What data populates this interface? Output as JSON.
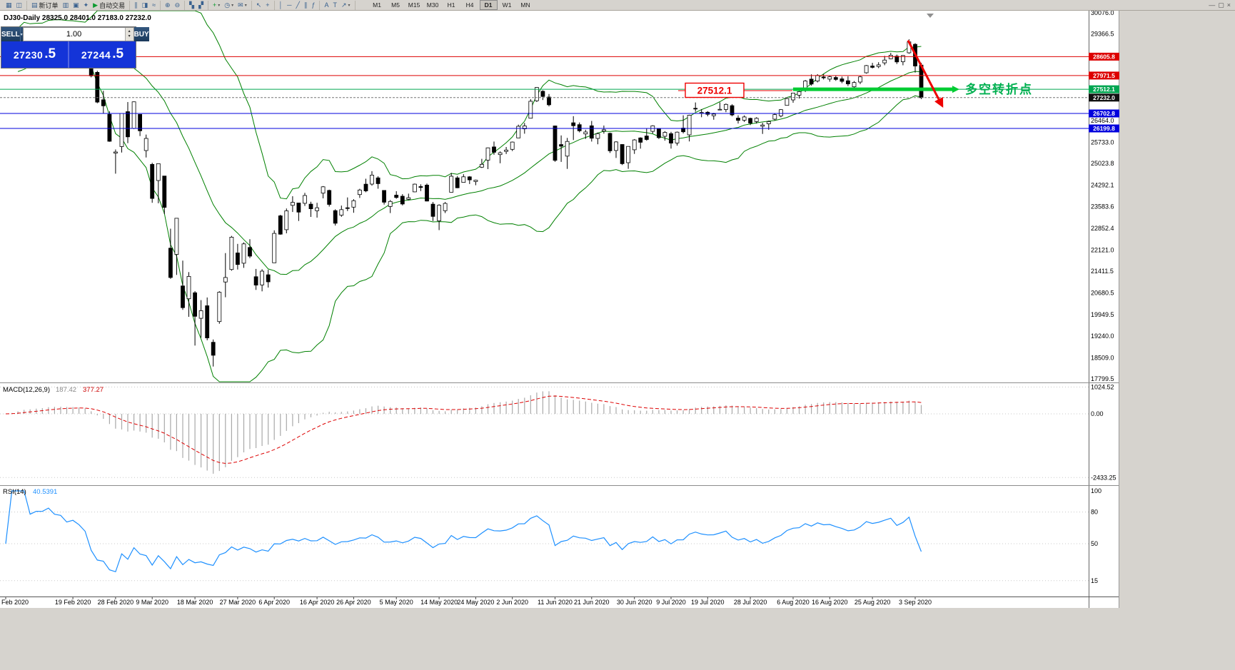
{
  "app": {
    "background": "#d6d3ce",
    "chart_background": "#ffffff"
  },
  "toolbar": {
    "dropdown_glyph": "▾",
    "groups": [
      {
        "items": [
          {
            "name": "new-chart-button",
            "glyph": "▦"
          },
          {
            "name": "profiles-button",
            "glyph": "◫"
          }
        ]
      },
      {
        "items": [
          {
            "name": "new-order-button",
            "glyph": "▤",
            "label": "新订单"
          },
          {
            "name": "market-watch-button",
            "glyph": "▥"
          },
          {
            "name": "data-window-button",
            "glyph": "▣"
          },
          {
            "name": "navigator-button",
            "glyph": "✦"
          },
          {
            "name": "autotrading-button",
            "glyph": "▶",
            "label": "自动交易",
            "accent": true
          }
        ]
      },
      {
        "items": [
          {
            "name": "bar-chart-button",
            "glyph": "∥"
          },
          {
            "name": "candlestick-chart-button",
            "glyph": "◨"
          },
          {
            "name": "line-chart-button",
            "glyph": "≈"
          }
        ]
      },
      {
        "items": [
          {
            "name": "zoom-in-button",
            "glyph": "⊕"
          },
          {
            "name": "zoom-out-button",
            "glyph": "⊖"
          }
        ]
      },
      {
        "items": [
          {
            "name": "tile-windows-button",
            "glyph": "▚"
          },
          {
            "name": "cascade-windows-button",
            "glyph": "▞"
          }
        ]
      },
      {
        "items": [
          {
            "name": "indicators-button",
            "glyph": "+",
            "accent": true,
            "dd": true
          },
          {
            "name": "periods-button",
            "glyph": "◷",
            "dd": true
          },
          {
            "name": "templates-button",
            "glyph": "✉",
            "dd": true
          }
        ]
      },
      {
        "items": [
          {
            "name": "cursor-button",
            "glyph": "↖"
          },
          {
            "name": "crosshair-button",
            "glyph": "+"
          }
        ]
      },
      {
        "items": [
          {
            "name": "vertical-line-button",
            "glyph": "│"
          },
          {
            "name": "horizontal-line-button",
            "glyph": "─"
          },
          {
            "name": "trendline-button",
            "glyph": "╱"
          },
          {
            "name": "equidistant-channel-button",
            "glyph": "∥"
          },
          {
            "name": "fibonacci-button",
            "glyph": "ƒ"
          }
        ]
      },
      {
        "items": [
          {
            "name": "text-button",
            "glyph": "A"
          },
          {
            "name": "text-label-button",
            "glyph": "T"
          },
          {
            "name": "arrows-button",
            "glyph": "↗",
            "dd": true
          }
        ]
      }
    ],
    "timeframes": [
      "M1",
      "M5",
      "M15",
      "M30",
      "H1",
      "H4",
      "D1",
      "W1",
      "MN"
    ],
    "active_timeframe": "D1",
    "window_controls": [
      {
        "name": "minimize-button",
        "glyph": "—"
      },
      {
        "name": "restore-button",
        "glyph": "▢"
      },
      {
        "name": "close-button",
        "glyph": "×"
      }
    ]
  },
  "trade_panel": {
    "sell_label": "SELL",
    "buy_label": "BUY",
    "volume": "1.00",
    "sell_price_main": "27230",
    "sell_price_pip": ".5",
    "buy_price_main": "27244",
    "buy_price_pip": ".5",
    "spin_up": "▴",
    "spin_down": "▾",
    "dropdown_glyph": "▾"
  },
  "chart": {
    "header": "DJ30-Daily 28325.0 28401.0 27183.0 27232.0"
  },
  "macd": {
    "label": "MACD(12,26,9)",
    "main_value": "187.42",
    "signal_value": "377.27",
    "axis_labels": [
      "1024.52",
      "0.00",
      "-2433.25"
    ]
  },
  "rsi": {
    "label": "RSI(14)",
    "value": "40.5391",
    "axis_labels": [
      "100",
      "80",
      "50",
      "15"
    ]
  },
  "annotations": {
    "price_note": "27512.1",
    "turning_point_text": "多空转折点"
  },
  "chart_data": {
    "type": "candlestick",
    "symbol": "DJ30",
    "timeframe": "Daily",
    "title": "DJ30-Daily",
    "last_bar": {
      "open": 28325.0,
      "high": 28401.0,
      "low": 27183.0,
      "close": 27232.0
    },
    "bid": "27230.5",
    "ask": "27244.5",
    "ylim": [
      17799.5,
      30076.0
    ],
    "y_axis_labels": [
      "30076.0",
      "29366.5",
      "26464.0",
      "25733.0",
      "25023.8",
      "24292.1",
      "23583.6",
      "22852.4",
      "22121.0",
      "21411.5",
      "20680.5",
      "19949.5",
      "19240.0",
      "18509.0",
      "17799.5"
    ],
    "hlines": [
      {
        "price": 28605.8,
        "label": "28605.8",
        "color": "#dd0000"
      },
      {
        "price": 27971.5,
        "label": "27971.5",
        "color": "#dd0000"
      },
      {
        "price": 27512.1,
        "label": "27512.1",
        "color": "#00a651"
      },
      {
        "price": 27232.0,
        "label": "27232.0",
        "color": "#111111",
        "current": true
      },
      {
        "price": 26702.8,
        "label": "26702.8",
        "color": "#0000dd"
      },
      {
        "price": 26199.8,
        "label": "26199.8",
        "color": "#0000dd"
      }
    ],
    "x_ticks": [
      [
        0,
        "Feb 2020"
      ],
      [
        11,
        "19 Feb 2020"
      ],
      [
        18,
        "28 Feb 2020"
      ],
      [
        24,
        "9 Mar 2020"
      ],
      [
        31,
        "18 Mar 2020"
      ],
      [
        38,
        "27 Mar 2020"
      ],
      [
        44,
        "6 Apr 2020"
      ],
      [
        51,
        "16 Apr 2020"
      ],
      [
        57,
        "26 Apr 2020"
      ],
      [
        64,
        "5 May 2020"
      ],
      [
        71,
        "14 May 2020"
      ],
      [
        77,
        "24 May 2020"
      ],
      [
        83,
        "2 Jun 2020"
      ],
      [
        90,
        "11 Jun 2020"
      ],
      [
        96,
        "21 Jun 2020"
      ],
      [
        103,
        "30 Jun 2020"
      ],
      [
        109,
        "9 Jul 2020"
      ],
      [
        115,
        "19 Jul 2020"
      ],
      [
        122,
        "28 Jul 2020"
      ],
      [
        129,
        "6 Aug 2020"
      ],
      [
        135,
        "16 Aug 2020"
      ],
      [
        142,
        "25 Aug 2020"
      ],
      [
        149,
        "3 Sep 2020"
      ]
    ],
    "indicators": {
      "bollinger_period": 20,
      "bollinger_deviation": 2,
      "macd": [
        12,
        26,
        9
      ],
      "rsi_period": 14
    },
    "trend_tools": {
      "level_price": 27512.1,
      "level_from_index": 129,
      "arrow_from_price": 29150,
      "arrow_to_price": 26950
    },
    "candles": [
      [
        28320,
        28470,
        28245,
        28400
      ],
      [
        28697,
        28905,
        28640,
        28808
      ],
      [
        29049,
        29308,
        29042,
        29291
      ],
      [
        29290,
        29408,
        29246,
        29380
      ],
      [
        29360,
        29380,
        29056,
        29103
      ],
      [
        29080,
        29298,
        29046,
        29277
      ],
      [
        29290,
        29415,
        29250,
        29276
      ],
      [
        29300,
        29568,
        29295,
        29551
      ],
      [
        29500,
        29535,
        29345,
        29423
      ],
      [
        29430,
        29481,
        29333,
        29398
      ],
      [
        29330,
        29352,
        29140,
        29232
      ],
      [
        29260,
        29409,
        29250,
        29348
      ],
      [
        29340,
        29368,
        29056,
        29220
      ],
      [
        29190,
        29227,
        28893,
        28992
      ],
      [
        28510,
        28544,
        27912,
        27961
      ],
      [
        28080,
        28132,
        27044,
        27081
      ],
      [
        27160,
        27460,
        26704,
        26958
      ],
      [
        26670,
        26775,
        25752,
        25767
      ],
      [
        25370,
        25494,
        24681,
        25409
      ],
      [
        25590,
        26706,
        25391,
        26703
      ],
      [
        26762,
        27084,
        25706,
        25917
      ],
      [
        26200,
        27102,
        26176,
        27091
      ],
      [
        26671,
        26671,
        25943,
        26121
      ],
      [
        25457,
        25994,
        25226,
        25865
      ],
      [
        24992,
        25048,
        23706,
        23851
      ],
      [
        24453,
        25020,
        23690,
        25018
      ],
      [
        24604,
        24604,
        23328,
        23553
      ],
      [
        22184,
        22837,
        21154,
        21201
      ],
      [
        21973,
        23189,
        21285,
        23186
      ],
      [
        20917,
        21768,
        20117,
        20188
      ],
      [
        20487,
        21379,
        19882,
        21237
      ],
      [
        20688,
        20742,
        18917,
        19899
      ],
      [
        19830,
        20442,
        19177,
        20087
      ],
      [
        20253,
        20531,
        19094,
        19174
      ],
      [
        19028,
        19121,
        18213,
        18592
      ],
      [
        19722,
        20737,
        19649,
        20705
      ],
      [
        21050,
        22019,
        20538,
        21200
      ],
      [
        21468,
        22595,
        21427,
        22552
      ],
      [
        22024,
        22327,
        21469,
        21637
      ],
      [
        21678,
        22378,
        21522,
        22327
      ],
      [
        22208,
        22482,
        21852,
        21917
      ],
      [
        21227,
        21487,
        20784,
        20944
      ],
      [
        20950,
        21477,
        20735,
        21413
      ],
      [
        21290,
        21458,
        20863,
        21053
      ],
      [
        21694,
        22783,
        21693,
        22680
      ],
      [
        23268,
        23304,
        22634,
        22654
      ],
      [
        22803,
        23513,
        22682,
        23434
      ],
      [
        23619,
        23925,
        23398,
        23719
      ],
      [
        23698,
        23698,
        23096,
        23391
      ],
      [
        23690,
        24041,
        23600,
        23950
      ],
      [
        23660,
        23740,
        23232,
        23504
      ],
      [
        23441,
        23705,
        23209,
        23538
      ],
      [
        24030,
        24265,
        23855,
        24242
      ],
      [
        24120,
        24147,
        23578,
        23650
      ],
      [
        23442,
        23488,
        22942,
        23019
      ],
      [
        23289,
        23613,
        23234,
        23476
      ],
      [
        23538,
        23885,
        23428,
        23515
      ],
      [
        23560,
        23827,
        23371,
        23775
      ],
      [
        23980,
        24174,
        23868,
        24134
      ],
      [
        24330,
        24512,
        24059,
        24102
      ],
      [
        24332,
        24765,
        24278,
        24634
      ],
      [
        24540,
        24595,
        24176,
        24346
      ],
      [
        24120,
        24120,
        23645,
        23724
      ],
      [
        23581,
        23798,
        23361,
        23750
      ],
      [
        23961,
        24094,
        23843,
        23883
      ],
      [
        23925,
        23996,
        23616,
        23665
      ],
      [
        23823,
        24012,
        23791,
        23876
      ],
      [
        24072,
        24350,
        24059,
        24331
      ],
      [
        24250,
        24325,
        24099,
        24222
      ],
      [
        24300,
        24350,
        23752,
        23765
      ],
      [
        23660,
        23733,
        23095,
        23248
      ],
      [
        23100,
        23653,
        22790,
        23625
      ],
      [
        23440,
        23731,
        23360,
        23685
      ],
      [
        24060,
        24709,
        24059,
        24597
      ],
      [
        24540,
        24602,
        24196,
        24207
      ],
      [
        24390,
        24666,
        24390,
        24576
      ],
      [
        24577,
        24600,
        24334,
        24474
      ],
      [
        24420,
        24482,
        24294,
        24465
      ],
      [
        24900,
        25180,
        24874,
        24995
      ],
      [
        25135,
        25560,
        24834,
        25548
      ],
      [
        25580,
        25758,
        25317,
        25401
      ],
      [
        25320,
        25428,
        25032,
        25383
      ],
      [
        25430,
        25577,
        25340,
        25475
      ],
      [
        25500,
        25760,
        25440,
        25743
      ],
      [
        25880,
        26326,
        25880,
        26270
      ],
      [
        26185,
        26384,
        26022,
        26282
      ],
      [
        26542,
        27181,
        26542,
        27111
      ],
      [
        27126,
        27581,
        27086,
        27572
      ],
      [
        27447,
        27479,
        27151,
        27272
      ],
      [
        27251,
        27355,
        26938,
        26990
      ],
      [
        26282,
        26294,
        25082,
        25128
      ],
      [
        25659,
        25965,
        25078,
        25605
      ],
      [
        25270,
        25880,
        24843,
        25763
      ],
      [
        26389,
        26611,
        25811,
        26290
      ],
      [
        26326,
        26400,
        26068,
        26120
      ],
      [
        26016,
        26153,
        25848,
        26080
      ],
      [
        26288,
        26451,
        25759,
        25871
      ],
      [
        25865,
        26059,
        25667,
        26025
      ],
      [
        26111,
        26298,
        26025,
        26156
      ],
      [
        26033,
        26059,
        25376,
        25446
      ],
      [
        25458,
        25771,
        25209,
        25746
      ],
      [
        25660,
        25669,
        24971,
        25016
      ],
      [
        25051,
        25602,
        24844,
        25596
      ],
      [
        25482,
        25843,
        25344,
        25813
      ],
      [
        25880,
        25903,
        25523,
        25735
      ],
      [
        25945,
        26204,
        25787,
        25827
      ],
      [
        26100,
        26306,
        26032,
        26287
      ],
      [
        26182,
        26182,
        25845,
        25890
      ],
      [
        25935,
        26109,
        25791,
        26067
      ],
      [
        26025,
        26087,
        25523,
        25706
      ],
      [
        25712,
        26095,
        25626,
        26075
      ],
      [
        26210,
        26639,
        26031,
        26086
      ],
      [
        25986,
        26658,
        25764,
        26643
      ],
      [
        26874,
        27071,
        26759,
        26870
      ],
      [
        26731,
        26843,
        26575,
        26735
      ],
      [
        26742,
        26779,
        26606,
        26672
      ],
      [
        26626,
        26721,
        26490,
        26681
      ],
      [
        26826,
        27072,
        26817,
        26840
      ],
      [
        26836,
        27036,
        26745,
        27006
      ],
      [
        26963,
        27011,
        26605,
        26652
      ],
      [
        26546,
        26640,
        26364,
        26470
      ],
      [
        26474,
        26636,
        26417,
        26585
      ],
      [
        26537,
        26561,
        26311,
        26379
      ],
      [
        26430,
        26576,
        26364,
        26540
      ],
      [
        26273,
        26388,
        26014,
        26313
      ],
      [
        26355,
        26458,
        26153,
        26428
      ],
      [
        26512,
        26705,
        26469,
        26664
      ],
      [
        26620,
        26847,
        26572,
        26828
      ],
      [
        26972,
        27225,
        26972,
        27201
      ],
      [
        27158,
        27388,
        27060,
        27387
      ],
      [
        27314,
        27470,
        27203,
        27433
      ],
      [
        27481,
        27824,
        27421,
        27791
      ],
      [
        27852,
        28013,
        27633,
        27687
      ],
      [
        27787,
        28019,
        27742,
        27977
      ],
      [
        27928,
        28022,
        27842,
        27897
      ],
      [
        27852,
        27959,
        27767,
        27931
      ],
      [
        27909,
        27966,
        27795,
        27845
      ],
      [
        27862,
        27939,
        27717,
        27778
      ],
      [
        27798,
        27949,
        27620,
        27693
      ],
      [
        27595,
        27789,
        27545,
        27740
      ],
      [
        27755,
        27959,
        27686,
        27930
      ],
      [
        28066,
        28327,
        28038,
        28308
      ],
      [
        28294,
        28399,
        28212,
        28248
      ],
      [
        28278,
        28419,
        28222,
        28332
      ],
      [
        28398,
        28634,
        28320,
        28492
      ],
      [
        28535,
        28733,
        28520,
        28654
      ],
      [
        28623,
        28676,
        28361,
        28430
      ],
      [
        28438,
        28660,
        28318,
        28646
      ],
      [
        28736,
        29187,
        28704,
        29101
      ],
      [
        29020,
        29059,
        28074,
        28293
      ],
      [
        28325,
        28401,
        27183,
        27232
      ]
    ]
  }
}
